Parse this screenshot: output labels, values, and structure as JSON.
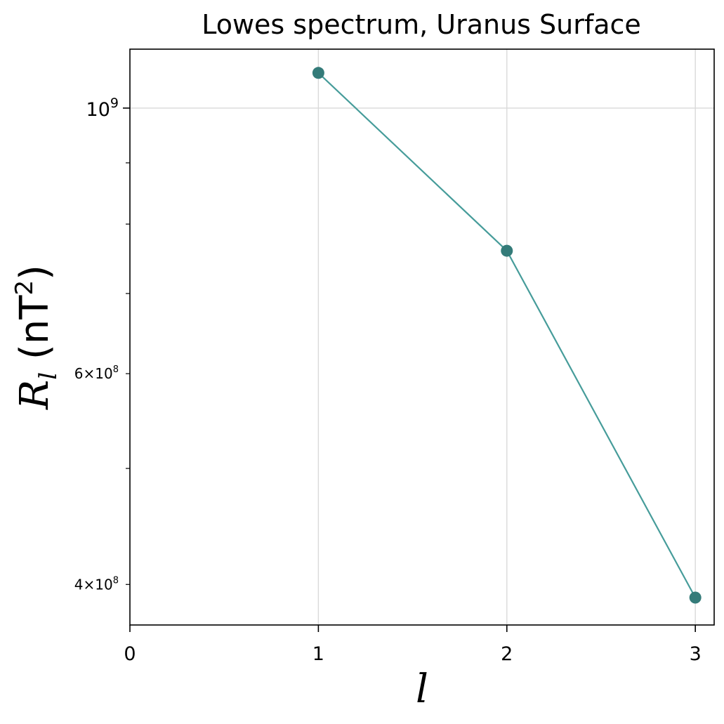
{
  "chart_data": {
    "type": "line",
    "title": "Lowes spectrum, Uranus  Surface",
    "xlabel": "l",
    "ylabel": {
      "symbol": "R",
      "subscript": "l",
      "unit_open": " (nT",
      "unit_power": "2",
      "unit_close": ")"
    },
    "x": [
      1,
      2,
      3
    ],
    "series": [
      {
        "values": [
          1070000000,
          760000000,
          390000000
        ]
      }
    ],
    "xlim": [
      0,
      3.1
    ],
    "ylim": [
      370000000,
      1120000000
    ],
    "yscale": "log",
    "grid": true,
    "x_ticks": [
      {
        "value": 0,
        "label": "0"
      },
      {
        "value": 1,
        "label": "1"
      },
      {
        "value": 2,
        "label": "2"
      },
      {
        "value": 3,
        "label": "3"
      }
    ],
    "y_major_ticks": [
      {
        "value": 1000000000,
        "base": "10",
        "exp": "9"
      }
    ],
    "y_minor_labeled_ticks": [
      {
        "value": 400000000,
        "mant": "4",
        "times": "×",
        "base": "10",
        "exp": "8"
      },
      {
        "value": 600000000,
        "mant": "6",
        "times": "×",
        "base": "10",
        "exp": "8"
      }
    ],
    "y_minor_ticks": [
      500000000,
      700000000,
      800000000,
      900000000
    ],
    "colors": {
      "line": "#469c9a",
      "marker": "#347b79",
      "grid": "#d9d9d9",
      "axis": "#000000"
    }
  }
}
